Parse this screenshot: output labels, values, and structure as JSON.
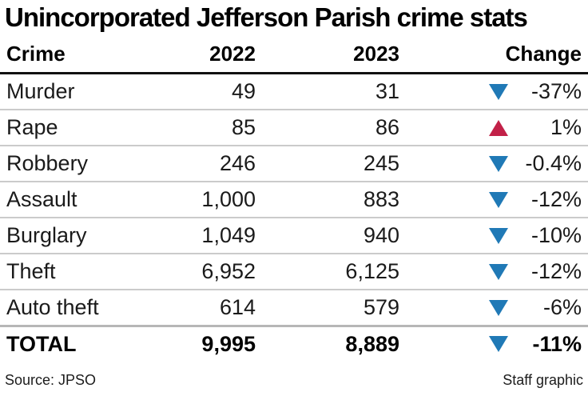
{
  "title": "Unincorporated Jefferson Parish crime stats",
  "table": {
    "columns": [
      "Crime",
      "2022",
      "2023",
      "Change"
    ],
    "rows": [
      {
        "crime": "Murder",
        "y2022": "49",
        "y2023": "31",
        "direction": "down",
        "change": "-37%"
      },
      {
        "crime": "Rape",
        "y2022": "85",
        "y2023": "86",
        "direction": "up",
        "change": "1%"
      },
      {
        "crime": "Robbery",
        "y2022": "246",
        "y2023": "245",
        "direction": "down",
        "change": "-0.4%"
      },
      {
        "crime": "Assault",
        "y2022": "1,000",
        "y2023": "883",
        "direction": "down",
        "change": "-12%"
      },
      {
        "crime": "Burglary",
        "y2022": "1,049",
        "y2023": "940",
        "direction": "down",
        "change": "-10%"
      },
      {
        "crime": "Theft",
        "y2022": "6,952",
        "y2023": "6,125",
        "direction": "down",
        "change": "-12%"
      },
      {
        "crime": "Auto theft",
        "y2022": "614",
        "y2023": "579",
        "direction": "down",
        "change": "-6%"
      }
    ],
    "total": {
      "crime": "TOTAL",
      "y2022": "9,995",
      "y2023": "8,889",
      "direction": "down",
      "change": "-11%"
    }
  },
  "footer": {
    "source": "Source: JPSO",
    "credit": "Staff graphic"
  },
  "colors": {
    "up": "#c22148",
    "down": "#2079b6",
    "header_rule": "#111111",
    "row_rule": "#cbcbcb"
  },
  "chart_data": {
    "type": "table",
    "title": "Unincorporated Jefferson Parish crime stats",
    "columns": [
      "Crime",
      "2022",
      "2023",
      "Change"
    ],
    "rows": [
      [
        "Murder",
        49,
        31,
        "-37%"
      ],
      [
        "Rape",
        85,
        86,
        "1%"
      ],
      [
        "Robbery",
        246,
        245,
        "-0.4%"
      ],
      [
        "Assault",
        1000,
        883,
        "-12%"
      ],
      [
        "Burglary",
        1049,
        940,
        "-10%"
      ],
      [
        "Theft",
        6952,
        6125,
        "-12%"
      ],
      [
        "Auto theft",
        614,
        579,
        "-6%"
      ],
      [
        "TOTAL",
        9995,
        8889,
        "-11%"
      ]
    ],
    "change_direction": [
      "down",
      "up",
      "down",
      "down",
      "down",
      "down",
      "down",
      "down"
    ],
    "source": "Source: JPSO",
    "credit": "Staff graphic"
  }
}
